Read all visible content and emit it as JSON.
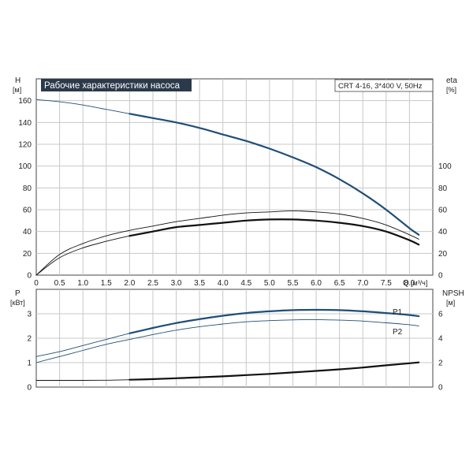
{
  "chart_data": [
    {
      "type": "line",
      "title": "Рабочие характеристики насоса",
      "model": "CRT 4-16, 3*400 V, 50Hz",
      "xlabel": "Q",
      "xunit": "[м³/ч]",
      "xlim": [
        0,
        8.5
      ],
      "x_ticks": [
        "0",
        "0.5",
        "1.0",
        "1.5",
        "2.0",
        "2.5",
        "3.0",
        "3.5",
        "4.0",
        "4.5",
        "5.0",
        "5.5",
        "6.0",
        "6.5",
        "7.0",
        "7.5",
        "8.0"
      ],
      "ylabel_left": "H",
      "yunit_left": "[м]",
      "ylim_left": [
        0,
        180
      ],
      "y_ticks_left": [
        "0",
        "20",
        "40",
        "60",
        "80",
        "100",
        "120",
        "140",
        "160"
      ],
      "ylabel_right": "eta",
      "yunit_right": "[%]",
      "ylim_right": [
        0,
        180
      ],
      "y_ticks_right": [
        "0",
        "20",
        "40",
        "60",
        "80",
        "100"
      ],
      "grid": true,
      "series": [
        {
          "key": "head",
          "axis": "left",
          "color": "#1f4e79",
          "x": [
            0,
            0.5,
            1.0,
            1.5,
            2.0,
            2.5,
            3.0,
            3.5,
            4.0,
            4.5,
            5.0,
            5.5,
            6.0,
            6.5,
            7.0,
            7.5,
            8.0,
            8.2
          ],
          "values": [
            161,
            159,
            156,
            152,
            148,
            144,
            140,
            135,
            129,
            123,
            116,
            108,
            99,
            88,
            75,
            60,
            43,
            37
          ]
        },
        {
          "key": "eta_thin",
          "axis": "right",
          "color": "#111111",
          "x": [
            0,
            0.5,
            1.0,
            1.5,
            2.0,
            2.5,
            3.0,
            3.5,
            4.0,
            4.5,
            5.0,
            5.5,
            6.0,
            6.5,
            7.0,
            7.5,
            8.0,
            8.2
          ],
          "values": [
            0,
            19,
            29,
            36,
            41,
            45,
            49,
            52,
            55,
            57,
            58,
            59,
            58,
            56,
            52,
            46,
            37,
            33
          ]
        },
        {
          "key": "eta_thick",
          "axis": "right",
          "color": "#111111",
          "x": [
            0,
            0.5,
            1.0,
            1.5,
            2.0,
            2.5,
            3.0,
            3.5,
            4.0,
            4.5,
            5.0,
            5.5,
            6.0,
            6.5,
            7.0,
            7.5,
            8.0,
            8.2
          ],
          "values": [
            0,
            16,
            25,
            31,
            36,
            40,
            44,
            46,
            48,
            50,
            51,
            51,
            50,
            48,
            45,
            40,
            32,
            28
          ]
        }
      ]
    },
    {
      "type": "line",
      "xlim": [
        0,
        8.5
      ],
      "ylabel_left": "P",
      "yunit_left": "[кВт]",
      "ylim_left": [
        0,
        4
      ],
      "y_ticks_left": [
        "0",
        "1",
        "2",
        "3"
      ],
      "ylabel_right": "NPSH",
      "yunit_right": "[м]",
      "ylim_right": [
        0,
        8
      ],
      "y_ticks_right": [
        "0",
        "2",
        "4",
        "6"
      ],
      "grid": true,
      "series": [
        {
          "key": "p1",
          "name": "P1",
          "axis": "left",
          "color": "#1f4e79",
          "x": [
            0,
            0.5,
            1.0,
            1.5,
            2.0,
            2.5,
            3.0,
            3.5,
            4.0,
            4.5,
            5.0,
            5.5,
            6.0,
            6.5,
            7.0,
            7.5,
            8.0,
            8.2
          ],
          "values": [
            1.25,
            1.45,
            1.7,
            1.95,
            2.2,
            2.42,
            2.62,
            2.78,
            2.92,
            3.03,
            3.1,
            3.15,
            3.16,
            3.15,
            3.1,
            3.03,
            2.95,
            2.9
          ]
        },
        {
          "key": "p2",
          "name": "P2",
          "axis": "left",
          "color": "#1f4e79",
          "x": [
            0,
            0.5,
            1.0,
            1.5,
            2.0,
            2.5,
            3.0,
            3.5,
            4.0,
            4.5,
            5.0,
            5.5,
            6.0,
            6.5,
            7.0,
            7.5,
            8.0,
            8.2
          ],
          "values": [
            1.0,
            1.25,
            1.5,
            1.75,
            1.95,
            2.15,
            2.33,
            2.47,
            2.58,
            2.67,
            2.72,
            2.75,
            2.76,
            2.74,
            2.7,
            2.63,
            2.55,
            2.5
          ]
        },
        {
          "key": "npsh",
          "axis": "right",
          "color": "#111111",
          "x": [
            0,
            0.5,
            1.0,
            1.5,
            2.0,
            2.5,
            3.0,
            3.5,
            4.0,
            4.5,
            5.0,
            5.5,
            6.0,
            6.5,
            7.0,
            7.5,
            8.0,
            8.2
          ],
          "values": [
            0.55,
            0.55,
            0.55,
            0.56,
            0.6,
            0.65,
            0.72,
            0.8,
            0.88,
            0.98,
            1.08,
            1.2,
            1.32,
            1.45,
            1.6,
            1.78,
            1.95,
            2.02
          ]
        }
      ]
    }
  ]
}
